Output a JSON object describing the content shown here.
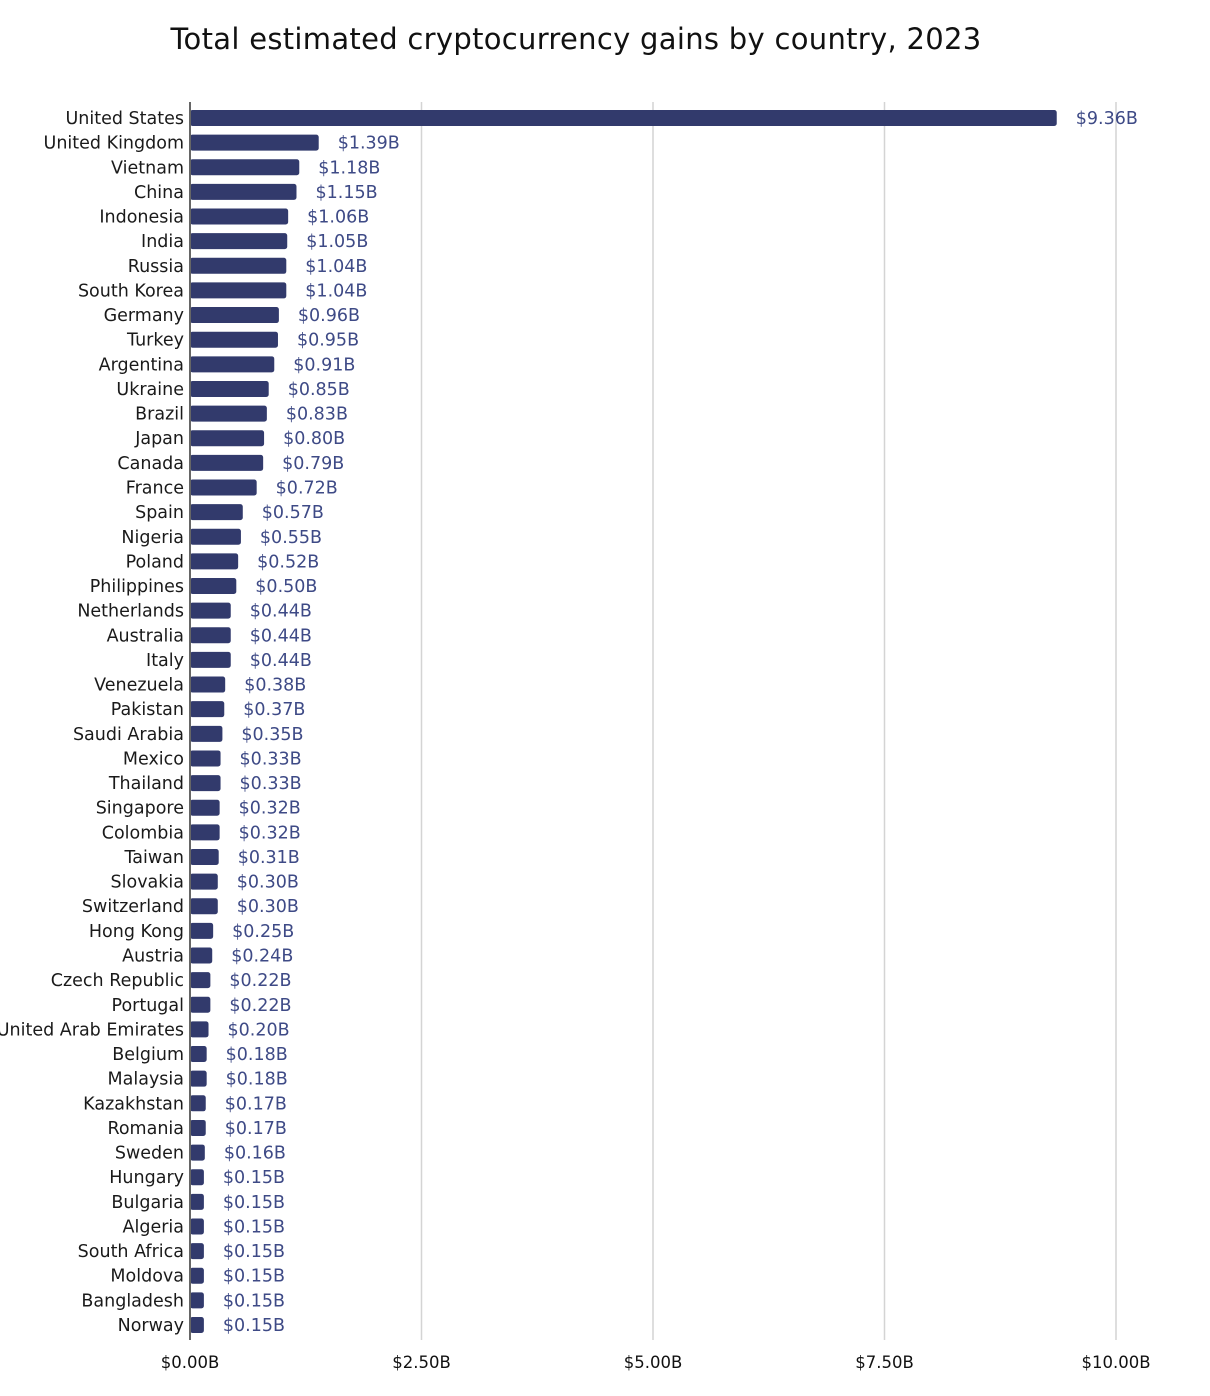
{
  "chart_data": {
    "type": "bar",
    "orientation": "horizontal",
    "title": "Total estimated cryptocurrency gains by country, 2023",
    "xlabel": "",
    "ylabel": "",
    "xlim": [
      0,
      10
    ],
    "grid": true,
    "bar_color": "#323a6c",
    "label_color": "#3e4a86",
    "xticks": [
      0,
      2.5,
      5,
      7.5,
      10
    ],
    "xtick_labels": [
      "$0.00B",
      "$2.50B",
      "$5.00B",
      "$7.50B",
      "$10.00B"
    ],
    "categories": [
      "United States",
      "United Kingdom",
      "Vietnam",
      "China",
      "Indonesia",
      "India",
      "Russia",
      "South Korea",
      "Germany",
      "Turkey",
      "Argentina",
      "Ukraine",
      "Brazil",
      "Japan",
      "Canada",
      "France",
      "Spain",
      "Nigeria",
      "Poland",
      "Philippines",
      "Netherlands",
      "Australia",
      "Italy",
      "Venezuela",
      "Pakistan",
      "Saudi Arabia",
      "Mexico",
      "Thailand",
      "Singapore",
      "Colombia",
      "Taiwan",
      "Slovakia",
      "Switzerland",
      "Hong Kong",
      "Austria",
      "Czech Republic",
      "Portugal",
      "United Arab Emirates",
      "Belgium",
      "Malaysia",
      "Kazakhstan",
      "Romania",
      "Sweden",
      "Hungary",
      "Bulgaria",
      "Algeria",
      "South Africa",
      "Moldova",
      "Bangladesh",
      "Norway"
    ],
    "values": [
      9.36,
      1.39,
      1.18,
      1.15,
      1.06,
      1.05,
      1.04,
      1.04,
      0.96,
      0.95,
      0.91,
      0.85,
      0.83,
      0.8,
      0.79,
      0.72,
      0.57,
      0.55,
      0.52,
      0.5,
      0.44,
      0.44,
      0.44,
      0.38,
      0.37,
      0.35,
      0.33,
      0.33,
      0.32,
      0.32,
      0.31,
      0.3,
      0.3,
      0.25,
      0.24,
      0.22,
      0.22,
      0.2,
      0.18,
      0.18,
      0.17,
      0.17,
      0.16,
      0.15,
      0.15,
      0.15,
      0.15,
      0.15,
      0.15,
      0.15
    ],
    "value_labels": [
      "$9.36B",
      "$1.39B",
      "$1.18B",
      "$1.15B",
      "$1.06B",
      "$1.05B",
      "$1.04B",
      "$1.04B",
      "$0.96B",
      "$0.95B",
      "$0.91B",
      "$0.85B",
      "$0.83B",
      "$0.80B",
      "$0.79B",
      "$0.72B",
      "$0.57B",
      "$0.55B",
      "$0.52B",
      "$0.50B",
      "$0.44B",
      "$0.44B",
      "$0.44B",
      "$0.38B",
      "$0.37B",
      "$0.35B",
      "$0.33B",
      "$0.33B",
      "$0.32B",
      "$0.32B",
      "$0.31B",
      "$0.30B",
      "$0.30B",
      "$0.25B",
      "$0.24B",
      "$0.22B",
      "$0.22B",
      "$0.20B",
      "$0.18B",
      "$0.18B",
      "$0.17B",
      "$0.17B",
      "$0.16B",
      "$0.15B",
      "$0.15B",
      "$0.15B",
      "$0.15B",
      "$0.15B",
      "$0.15B",
      "$0.15B"
    ]
  }
}
